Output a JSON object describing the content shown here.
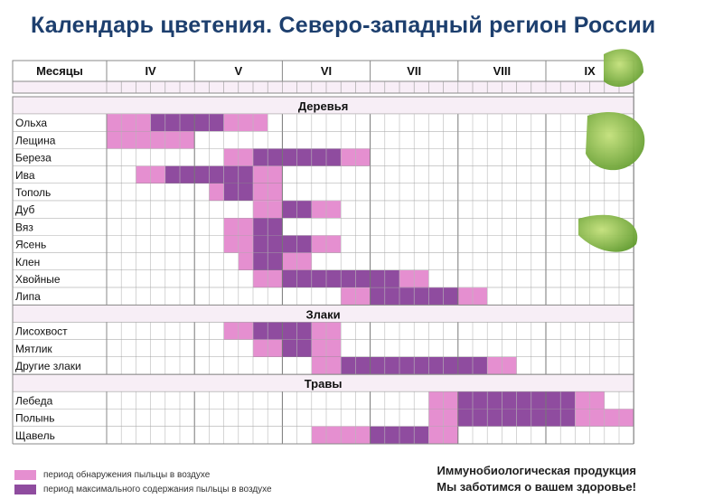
{
  "title": "Календарь цветения. Северо-западный регион России",
  "header": {
    "months_label": "Месяцы",
    "months": [
      "IV",
      "V",
      "VI",
      "VII",
      "VIII",
      "IX"
    ]
  },
  "colors": {
    "detection": "#e58fd0",
    "maximum": "#8f4c9f",
    "grid_line": "#888888",
    "section_bg": "#f7eef6",
    "title": "#1d3f6e"
  },
  "sections": [
    {
      "name": "Деревья",
      "rows": [
        {
          "label": "Ольха",
          "segments": [
            [
              0,
              3,
              "detection"
            ],
            [
              3,
              6,
              "maximum"
            ],
            [
              6,
              8,
              "maximum"
            ],
            [
              8,
              11,
              "detection"
            ]
          ]
        },
        {
          "label": "Лещина",
          "segments": [
            [
              0,
              6,
              "detection"
            ]
          ]
        },
        {
          "label": "Береза",
          "segments": [
            [
              8,
              10,
              "detection"
            ],
            [
              10,
              16,
              "maximum"
            ],
            [
              16,
              18,
              "detection"
            ]
          ]
        },
        {
          "label": "Ива",
          "segments": [
            [
              2,
              4,
              "detection"
            ],
            [
              4,
              10,
              "maximum"
            ],
            [
              10,
              12,
              "detection"
            ]
          ]
        },
        {
          "label": "Тополь",
          "segments": [
            [
              7,
              8,
              "detection"
            ],
            [
              8,
              10,
              "maximum"
            ],
            [
              10,
              12,
              "detection"
            ]
          ]
        },
        {
          "label": "Дуб",
          "segments": [
            [
              10,
              12,
              "detection"
            ],
            [
              12,
              14,
              "maximum"
            ],
            [
              14,
              16,
              "detection"
            ]
          ]
        },
        {
          "label": "Вяз",
          "segments": [
            [
              8,
              10,
              "detection"
            ],
            [
              10,
              12,
              "maximum"
            ]
          ]
        },
        {
          "label": "Ясень",
          "segments": [
            [
              8,
              10,
              "detection"
            ],
            [
              10,
              12,
              "maximum"
            ],
            [
              12,
              14,
              "maximum"
            ],
            [
              14,
              16,
              "detection"
            ]
          ]
        },
        {
          "label": "Клен",
          "segments": [
            [
              9,
              10,
              "detection"
            ],
            [
              10,
              12,
              "maximum"
            ],
            [
              12,
              14,
              "detection"
            ]
          ]
        },
        {
          "label": "Хвойные",
          "segments": [
            [
              10,
              12,
              "detection"
            ],
            [
              12,
              20,
              "maximum"
            ],
            [
              20,
              22,
              "detection"
            ]
          ]
        },
        {
          "label": "Липа",
          "segments": [
            [
              16,
              18,
              "detection"
            ],
            [
              18,
              24,
              "maximum"
            ],
            [
              24,
              26,
              "detection"
            ]
          ]
        }
      ]
    },
    {
      "name": "Злаки",
      "rows": [
        {
          "label": "Лисохвост",
          "segments": [
            [
              8,
              10,
              "detection"
            ],
            [
              10,
              12,
              "maximum"
            ],
            [
              12,
              14,
              "maximum"
            ],
            [
              14,
              16,
              "detection"
            ]
          ]
        },
        {
          "label": "Мятлик",
          "segments": [
            [
              10,
              12,
              "detection"
            ],
            [
              12,
              14,
              "maximum"
            ],
            [
              14,
              16,
              "detection"
            ]
          ]
        },
        {
          "label": "Другие злаки",
          "segments": [
            [
              14,
              16,
              "detection"
            ],
            [
              16,
              26,
              "maximum"
            ],
            [
              26,
              28,
              "detection"
            ]
          ]
        }
      ]
    },
    {
      "name": "Травы",
      "rows": [
        {
          "label": "Лебеда",
          "segments": [
            [
              22,
              24,
              "detection"
            ],
            [
              24,
              30,
              "maximum"
            ],
            [
              30,
              32,
              "maximum"
            ],
            [
              32,
              34,
              "detection"
            ]
          ]
        },
        {
          "label": "Полынь",
          "segments": [
            [
              22,
              24,
              "detection"
            ],
            [
              24,
              30,
              "maximum"
            ],
            [
              30,
              32,
              "maximum"
            ],
            [
              32,
              36,
              "detection"
            ]
          ]
        },
        {
          "label": "Щавель",
          "segments": [
            [
              14,
              18,
              "detection"
            ],
            [
              18,
              22,
              "maximum"
            ],
            [
              22,
              24,
              "detection"
            ]
          ]
        }
      ]
    }
  ],
  "legend": {
    "detection": "период обнаружения пыльцы в воздухе",
    "maximum": "период максимального содержания пыльцы в воздухе"
  },
  "promo": {
    "line1": "Иммунобиологическая продукция",
    "line2": "Мы заботимся о вашем здоровье!"
  }
}
